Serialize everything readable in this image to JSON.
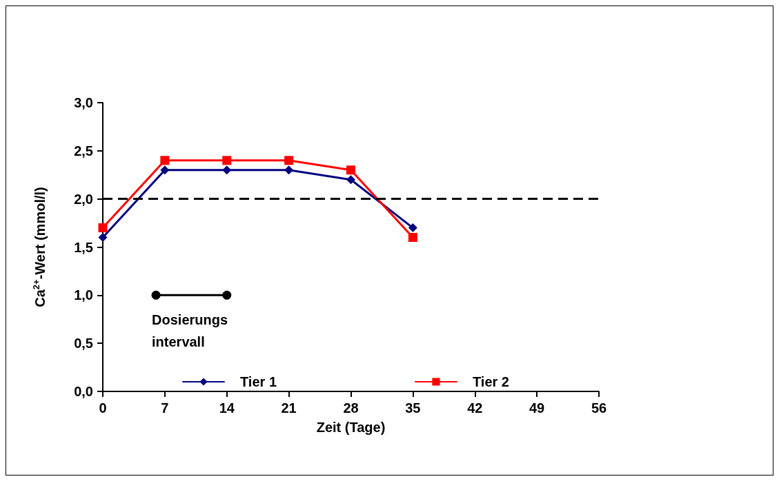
{
  "chart_data": {
    "type": "line",
    "ylabel": "Ca$^{2+}$-Wert (mmol/l)",
    "xlabel": "Zeit (Tage)",
    "x": [
      0,
      7,
      14,
      21,
      28,
      35
    ],
    "series": [
      {
        "name": "Tier 1",
        "color": "#000080",
        "values": [
          1.6,
          2.3,
          2.3,
          2.3,
          2.2,
          1.7
        ],
        "marker": "diamond"
      },
      {
        "name": "Tier 2",
        "color": "#ff0000",
        "values": [
          1.7,
          2.4,
          2.4,
          2.4,
          2.3,
          1.6
        ],
        "marker": "square"
      },
      {
        "color": "#000000",
        "x": [
          6,
          14
        ],
        "values": [
          1.0,
          1.0
        ],
        "marker": "circle"
      }
    ],
    "xlim": [
      0,
      56
    ],
    "xticks": [
      0,
      7,
      14,
      21,
      28,
      35,
      42,
      49,
      56
    ],
    "ylim": [
      0,
      3
    ],
    "yticks": [
      {
        "value": 0,
        "label": "0,0"
      },
      {
        "value": 0.5,
        "label": "0,5"
      },
      {
        "value": 1,
        "label": "1,0"
      },
      {
        "value": 1.5,
        "label": "1,5"
      },
      {
        "value": 2,
        "label": "2,0"
      },
      {
        "value": 2.5,
        "label": "2,5"
      },
      {
        "value": 3,
        "label": "3,0"
      }
    ],
    "ref_lines": [
      {
        "axis": "y",
        "value": 2.0,
        "color": "#000000",
        "line_style": "dashed"
      }
    ],
    "annotations": [
      {
        "text": "Dosierungs intervall",
        "x": 6,
        "y": 1.0
      }
    ],
    "legend": "bottom",
    "grid": false
  }
}
